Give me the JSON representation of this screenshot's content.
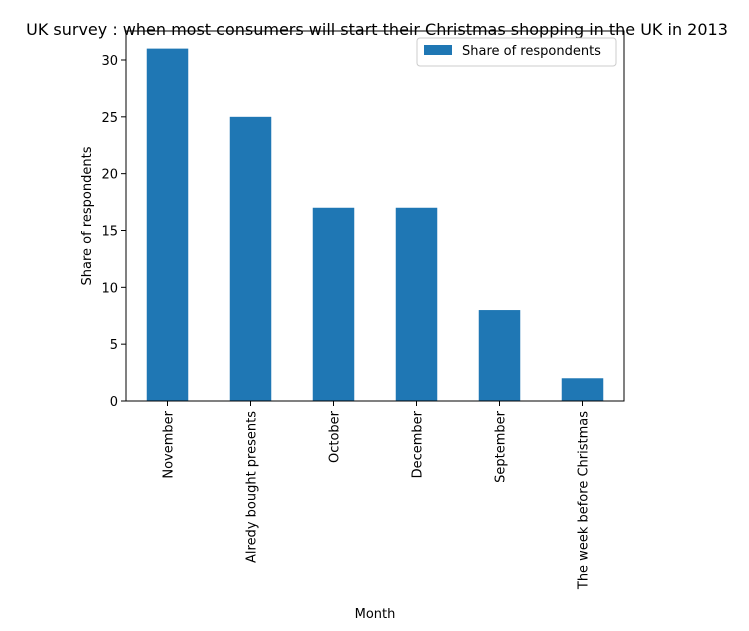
{
  "chart_data": {
    "type": "bar",
    "title": "UK survey : when most consumers will start their Christmas shopping in the UK in 2013",
    "xlabel": "Month",
    "ylabel": "Share of respondents",
    "categories": [
      "November",
      "Alredy bought presents",
      "October",
      "December",
      "September",
      "The week before Christmas"
    ],
    "series": [
      {
        "name": "Share of respondents",
        "values": [
          31,
          25,
          17,
          17,
          8,
          2
        ],
        "color": "#1f77b4"
      }
    ],
    "ylim": [
      0,
      32.55
    ],
    "yticks": [
      0,
      5,
      10,
      15,
      20,
      25,
      30
    ],
    "grid": false,
    "legend": "top-right"
  }
}
